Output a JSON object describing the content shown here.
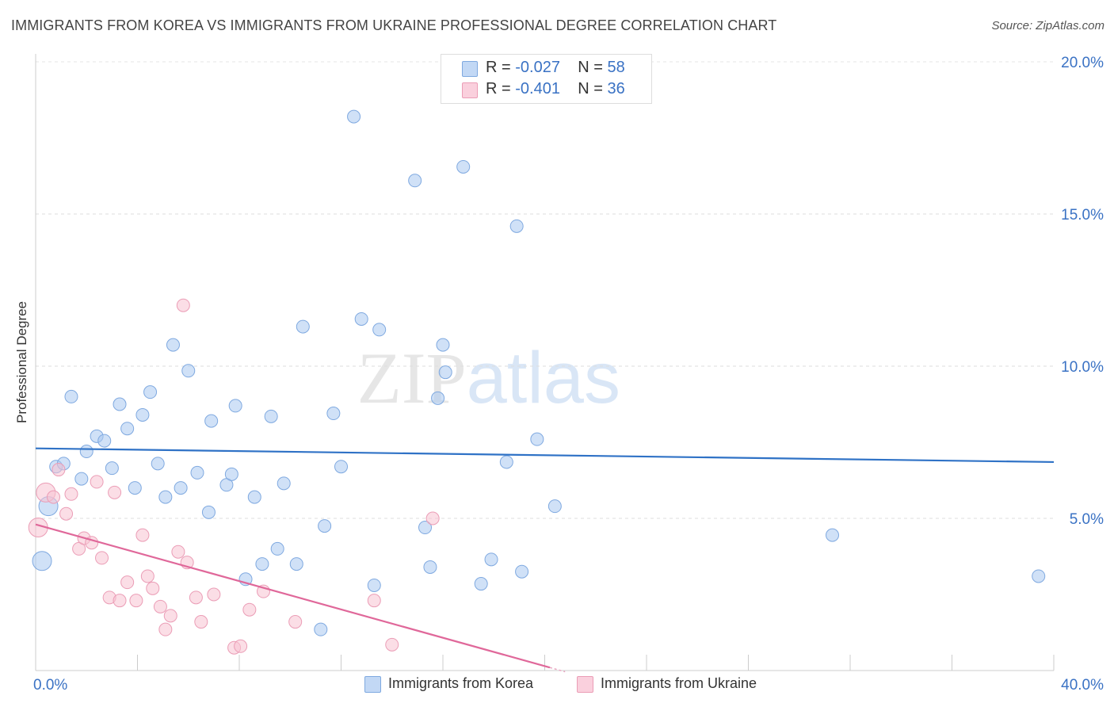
{
  "chart_data": {
    "type": "scatter",
    "title": "IMMIGRANTS FROM KOREA VS IMMIGRANTS FROM UKRAINE PROFESSIONAL DEGREE CORRELATION CHART",
    "source": "Source: ZipAtlas.com",
    "xlabel": "",
    "ylabel": "Professional Degree",
    "xlim": [
      0,
      40
    ],
    "ylim": [
      0,
      20
    ],
    "x_tick_labels": [
      "0.0%",
      "40.0%"
    ],
    "y_ticks": [
      5,
      10,
      15,
      20
    ],
    "y_tick_labels": [
      "5.0%",
      "10.0%",
      "15.0%",
      "20.0%"
    ],
    "grid": true,
    "watermark": "ZIPatlas",
    "legend_position": "top-center",
    "series": [
      {
        "name": "Immigrants from Korea",
        "color": "#a9c8f0",
        "stroke": "#7fa9e0",
        "line_color": "#2f72c6",
        "r_label": "R =",
        "r_value": "-0.027",
        "n_label": "N =",
        "n_value": "58",
        "trend": [
          [
            0,
            7.3
          ],
          [
            40,
            6.85
          ]
        ],
        "points": [
          [
            0.25,
            3.6
          ],
          [
            0.5,
            5.4
          ],
          [
            0.8,
            6.7
          ],
          [
            1.1,
            6.8
          ],
          [
            1.4,
            9.0
          ],
          [
            1.8,
            6.3
          ],
          [
            2.0,
            7.2
          ],
          [
            2.4,
            7.7
          ],
          [
            2.7,
            7.55
          ],
          [
            3.0,
            6.65
          ],
          [
            3.3,
            8.75
          ],
          [
            3.6,
            7.95
          ],
          [
            3.9,
            6.0
          ],
          [
            4.2,
            8.4
          ],
          [
            4.5,
            9.15
          ],
          [
            4.8,
            6.8
          ],
          [
            5.1,
            5.7
          ],
          [
            5.4,
            10.7
          ],
          [
            5.7,
            6.0
          ],
          [
            6.0,
            9.85
          ],
          [
            6.35,
            6.5
          ],
          [
            6.8,
            5.2
          ],
          [
            6.9,
            8.2
          ],
          [
            7.5,
            6.1
          ],
          [
            7.7,
            6.45
          ],
          [
            7.85,
            8.7
          ],
          [
            8.25,
            3.0
          ],
          [
            8.6,
            5.7
          ],
          [
            8.9,
            3.5
          ],
          [
            9.25,
            8.35
          ],
          [
            9.5,
            4.0
          ],
          [
            9.75,
            6.15
          ],
          [
            10.25,
            3.5
          ],
          [
            10.5,
            11.3
          ],
          [
            11.2,
            1.35
          ],
          [
            11.35,
            4.75
          ],
          [
            11.7,
            8.45
          ],
          [
            12.0,
            6.7
          ],
          [
            12.5,
            18.2
          ],
          [
            12.8,
            11.55
          ],
          [
            13.3,
            2.8
          ],
          [
            13.5,
            11.2
          ],
          [
            14.9,
            16.1
          ],
          [
            15.3,
            4.7
          ],
          [
            15.5,
            3.4
          ],
          [
            15.8,
            8.95
          ],
          [
            16.0,
            10.7
          ],
          [
            16.1,
            9.8
          ],
          [
            16.8,
            16.55
          ],
          [
            17.5,
            2.85
          ],
          [
            17.9,
            3.65
          ],
          [
            18.5,
            6.85
          ],
          [
            18.9,
            14.6
          ],
          [
            19.1,
            3.25
          ],
          [
            19.7,
            7.6
          ],
          [
            20.4,
            5.4
          ],
          [
            31.3,
            4.45
          ],
          [
            39.4,
            3.1
          ]
        ],
        "large_points": [
          [
            0.25,
            3.6
          ],
          [
            0.5,
            5.4
          ]
        ]
      },
      {
        "name": "Immigrants from Ukraine",
        "color": "#f7c2d2",
        "stroke": "#eb9db6",
        "line_color": "#e0689a",
        "r_label": "R =",
        "r_value": "-0.401",
        "n_label": "N =",
        "n_value": "36",
        "trend": [
          [
            0,
            4.8
          ],
          [
            20.2,
            0.1
          ]
        ],
        "points": [
          [
            0.1,
            4.7
          ],
          [
            0.4,
            5.85
          ],
          [
            0.7,
            5.7
          ],
          [
            0.9,
            6.6
          ],
          [
            1.2,
            5.15
          ],
          [
            1.4,
            5.8
          ],
          [
            1.7,
            4.0
          ],
          [
            1.9,
            4.35
          ],
          [
            2.2,
            4.2
          ],
          [
            2.4,
            6.2
          ],
          [
            2.6,
            3.7
          ],
          [
            2.9,
            2.4
          ],
          [
            3.1,
            5.85
          ],
          [
            3.3,
            2.3
          ],
          [
            3.6,
            2.9
          ],
          [
            3.95,
            2.3
          ],
          [
            4.2,
            4.45
          ],
          [
            4.4,
            3.1
          ],
          [
            4.6,
            2.7
          ],
          [
            4.9,
            2.1
          ],
          [
            5.1,
            1.35
          ],
          [
            5.3,
            1.8
          ],
          [
            5.6,
            3.9
          ],
          [
            5.8,
            12.0
          ],
          [
            5.95,
            3.55
          ],
          [
            6.3,
            2.4
          ],
          [
            6.5,
            1.6
          ],
          [
            7.0,
            2.5
          ],
          [
            7.8,
            0.75
          ],
          [
            8.05,
            0.8
          ],
          [
            8.4,
            2.0
          ],
          [
            8.95,
            2.6
          ],
          [
            10.2,
            1.6
          ],
          [
            13.3,
            2.3
          ],
          [
            14.0,
            0.85
          ],
          [
            15.6,
            5.0
          ]
        ],
        "large_points": [
          [
            0.1,
            4.7
          ],
          [
            0.4,
            5.85
          ]
        ]
      }
    ]
  }
}
